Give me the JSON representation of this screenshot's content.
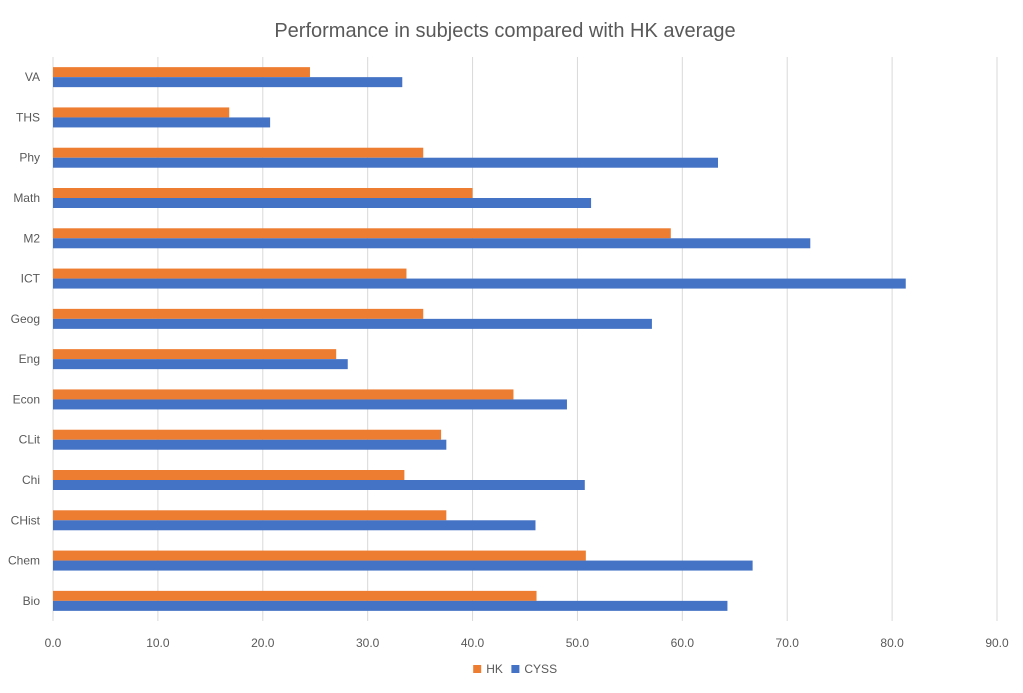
{
  "chart_data": {
    "type": "bar",
    "orientation": "horizontal",
    "title": "Performance in subjects compared with HK average",
    "xlabel": "",
    "ylabel": "",
    "categories": [
      "Bio",
      "Chem",
      "CHist",
      "Chi",
      "CLit",
      "Econ",
      "Eng",
      "Geog",
      "ICT",
      "M2",
      "Math",
      "Phy",
      "THS",
      "VA"
    ],
    "series": [
      {
        "name": "HK",
        "color": "#ed7d31",
        "values": [
          46.1,
          50.8,
          37.5,
          33.5,
          37.0,
          43.9,
          27.0,
          35.3,
          33.7,
          58.9,
          40.0,
          35.3,
          16.8,
          24.5
        ]
      },
      {
        "name": "CYSS",
        "color": "#4472c4",
        "values": [
          64.3,
          66.7,
          46.0,
          50.7,
          37.5,
          49.0,
          28.1,
          57.1,
          81.3,
          72.2,
          51.3,
          63.4,
          20.7,
          33.3
        ]
      }
    ],
    "xlim": [
      0,
      90
    ],
    "xticks": [
      "0.0",
      "10.0",
      "20.0",
      "30.0",
      "40.0",
      "50.0",
      "60.0",
      "70.0",
      "80.0",
      "90.0"
    ],
    "grid": true,
    "legend_position": "bottom"
  }
}
